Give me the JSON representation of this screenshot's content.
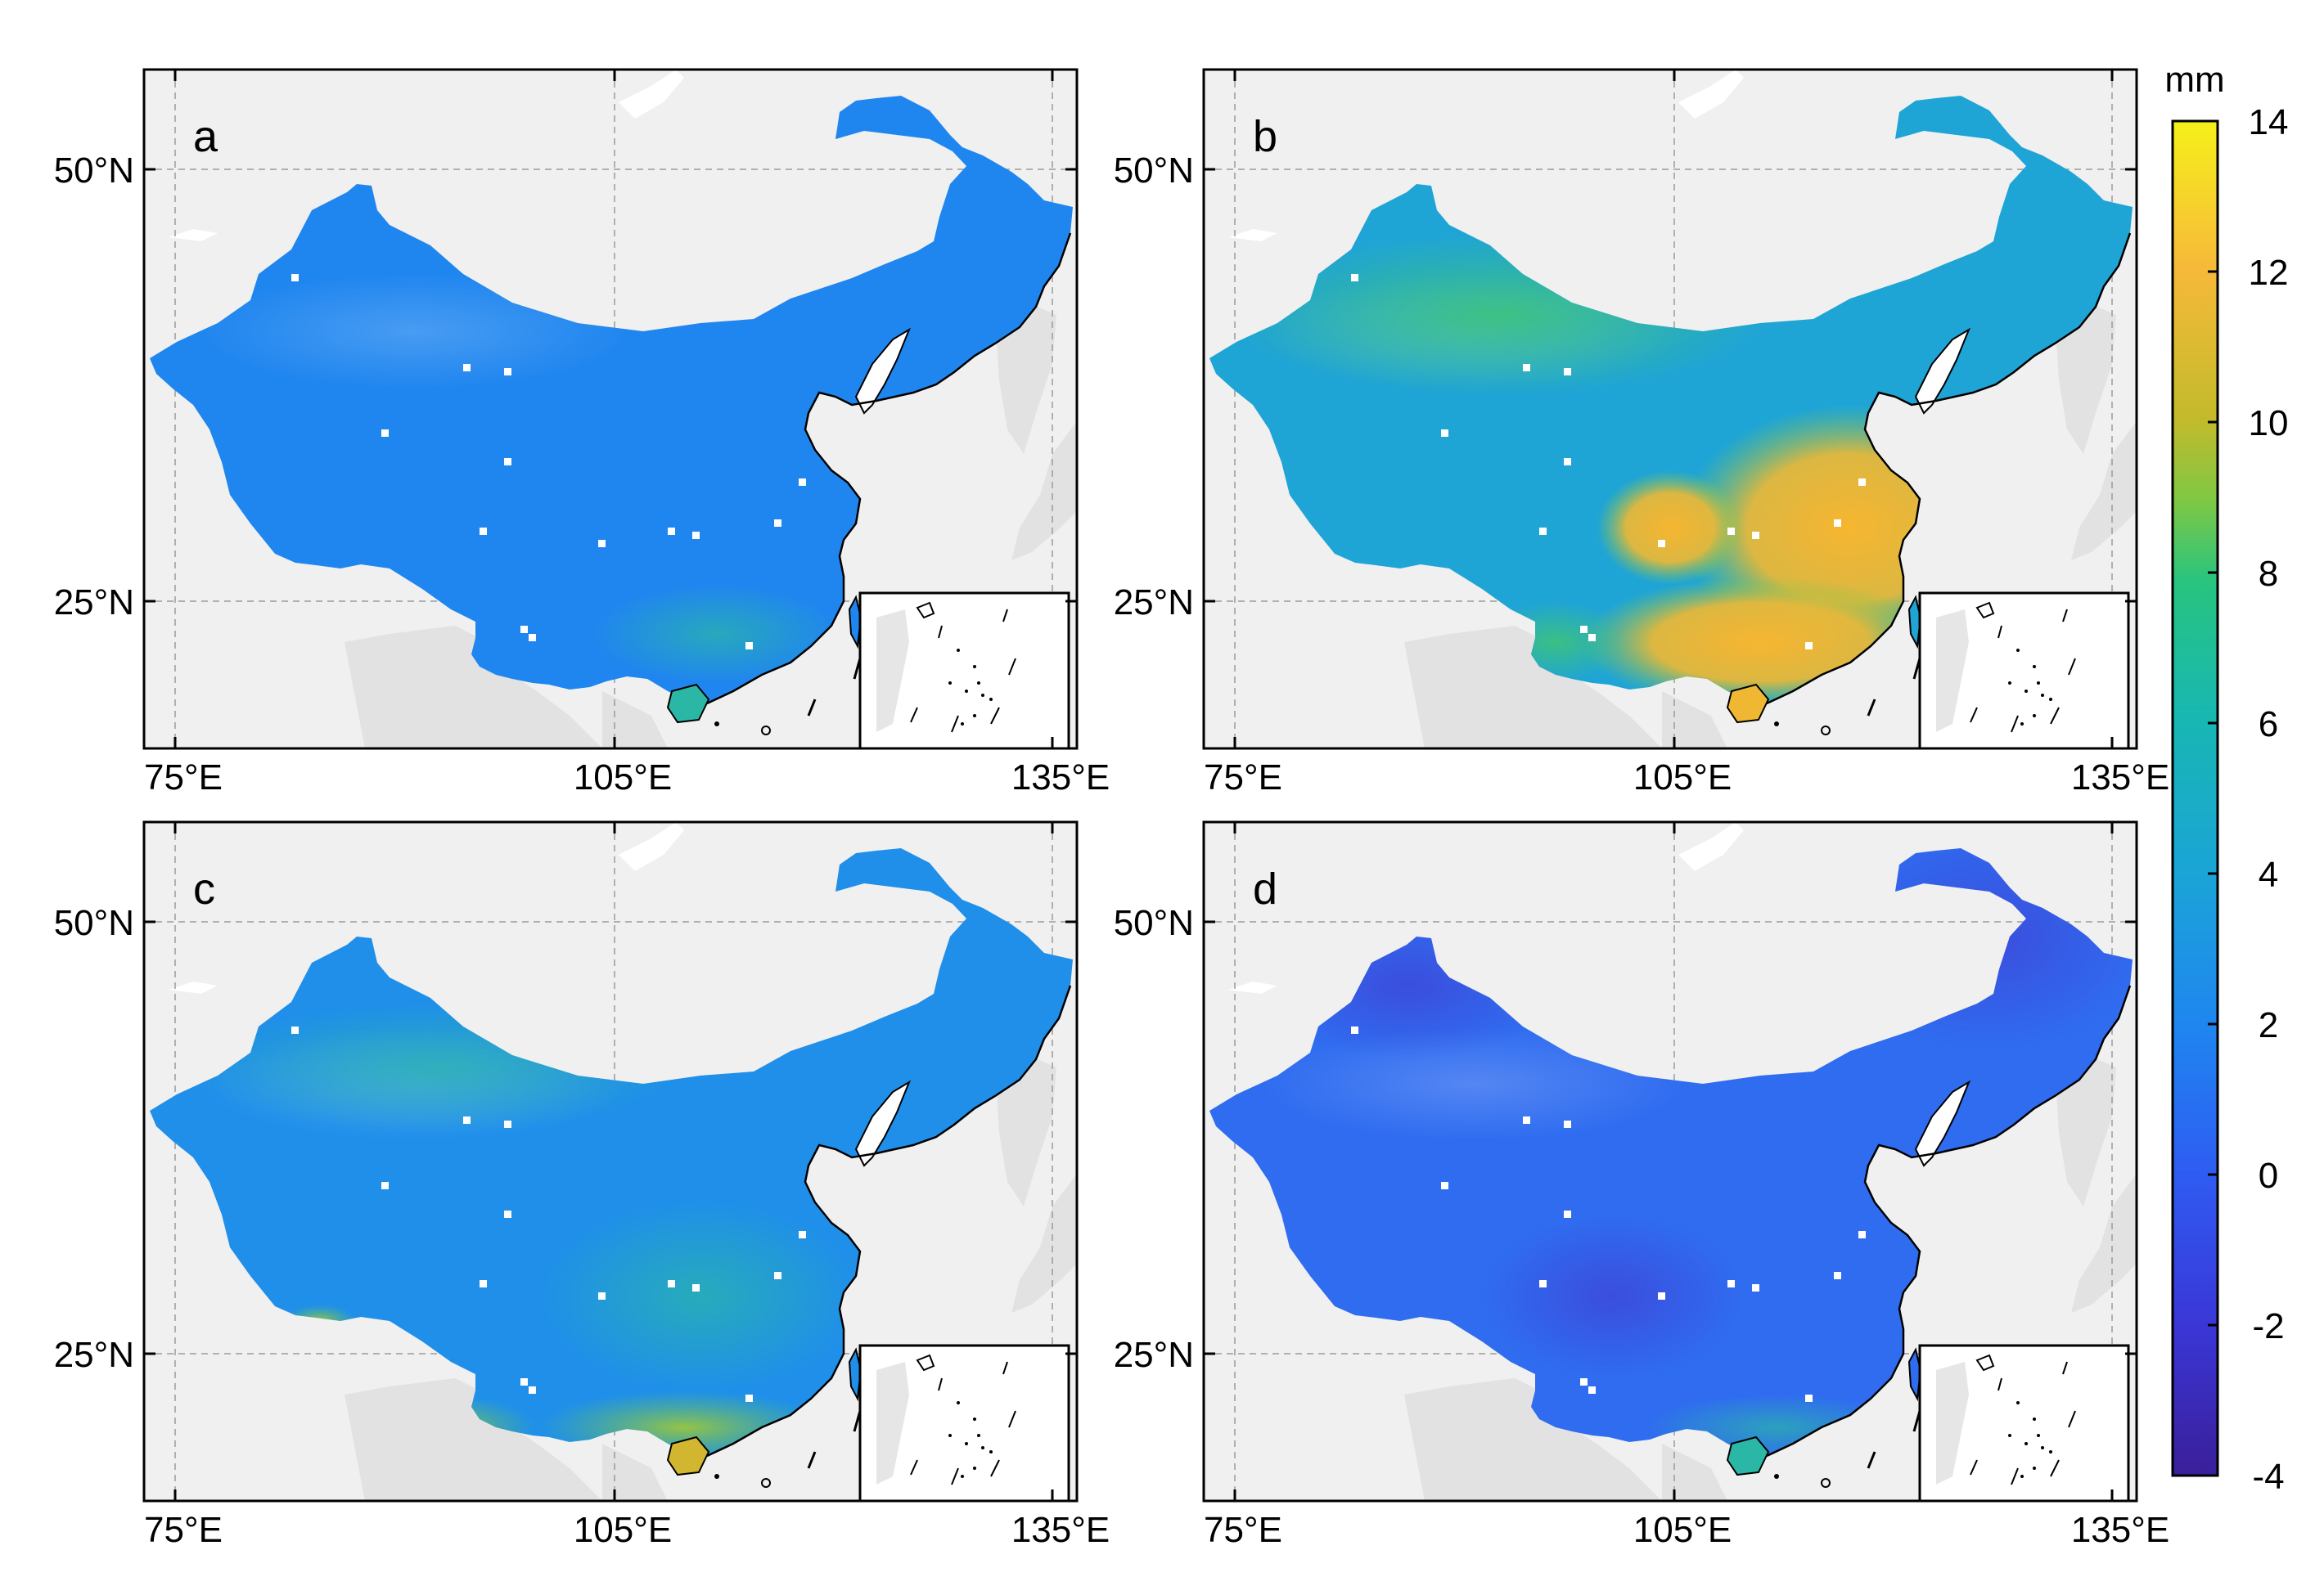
{
  "panels": [
    {
      "id": "a",
      "label": "a",
      "scheme": "low"
    },
    {
      "id": "b",
      "label": "b",
      "scheme": "high"
    },
    {
      "id": "c",
      "label": "c",
      "scheme": "mid"
    },
    {
      "id": "d",
      "label": "d",
      "scheme": "neg"
    }
  ],
  "axes": {
    "lat_ticks": [
      "50°N",
      "25°N"
    ],
    "lon_ticks": [
      "75°E",
      "105°E",
      "135°E"
    ]
  },
  "colorbar": {
    "unit": "mm",
    "ticks": [
      "14",
      "12",
      "10",
      "8",
      "6",
      "4",
      "2",
      "0",
      "-2",
      "-4"
    ],
    "min": -4,
    "max": 14
  },
  "colors": {
    "background": "#f0f0f0",
    "neighbor_land": "#e2e2e2",
    "cmap": [
      "#3a1f99",
      "#3a4fe0",
      "#1f7ef0",
      "#1ba0da",
      "#17b7b5",
      "#25c586",
      "#7fc844",
      "#c8b62a",
      "#f5b732",
      "#f6e41f"
    ]
  }
}
